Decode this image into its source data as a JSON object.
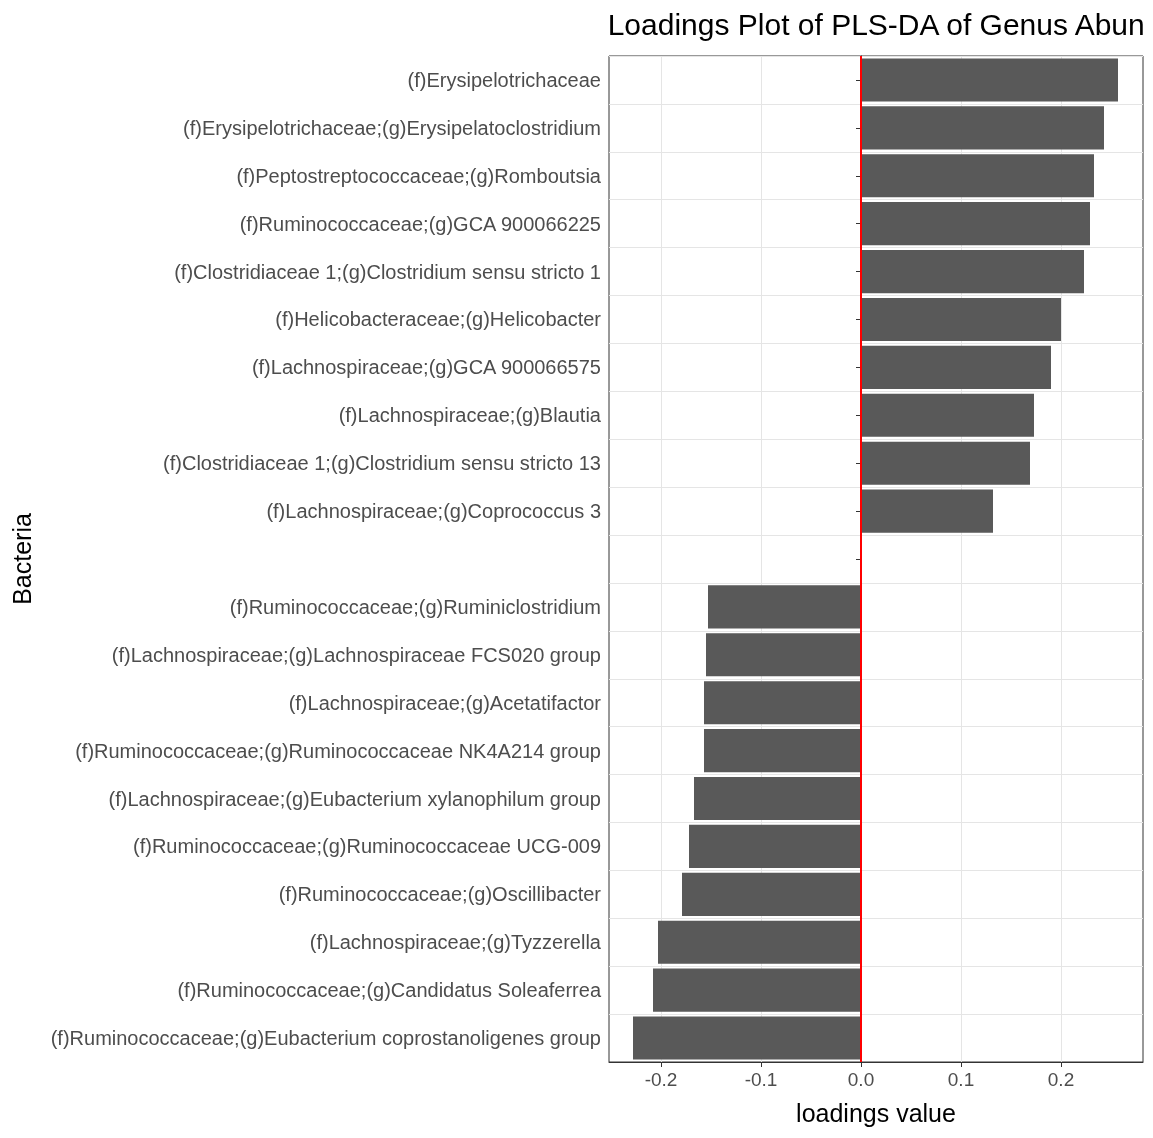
{
  "chart_data": {
    "type": "bar",
    "orientation": "horizontal",
    "title": "Loadings Plot of PLS-DA of Genus Abun",
    "xlabel": "loadings value",
    "ylabel": "Bacteria",
    "categories": [
      "(f)Erysipelotrichaceae",
      "(f)Erysipelotrichaceae;(g)Erysipelatoclostridium",
      "(f)Peptostreptococcaceae;(g)Romboutsia",
      "(f)Ruminococcaceae;(g)GCA 900066225",
      "(f)Clostridiaceae 1;(g)Clostridium sensu stricto 1",
      "(f)Helicobacteraceae;(g)Helicobacter",
      "(f)Lachnospiraceae;(g)GCA 900066575",
      "(f)Lachnospiraceae;(g)Blautia",
      "(f)Clostridiaceae 1;(g)Clostridium sensu stricto 13",
      "(f)Lachnospiraceae;(g)Coprococcus 3",
      null,
      "(f)Ruminococcaceae;(g)Ruminiclostridium",
      "(f)Lachnospiraceae;(g)Lachnospiraceae FCS020 group",
      "(f)Lachnospiraceae;(g)Acetatifactor",
      "(f)Ruminococcaceae;(g)Ruminococcaceae NK4A214 group",
      "(f)Lachnospiraceae;(g)Eubacterium xylanophilum group",
      "(f)Ruminococcaceae;(g)Ruminococcaceae UCG-009",
      "(f)Ruminococcaceae;(g)Oscillibacter",
      "(f)Lachnospiraceae;(g)Tyzzerella",
      "(f)Ruminococcaceae;(g)Candidatus Soleaferrea",
      "(f)Ruminococcaceae;(g)Eubacterium coprostanoligenes group"
    ],
    "values": [
      0.257,
      0.243,
      0.233,
      0.229,
      0.223,
      0.2,
      0.19,
      0.173,
      0.169,
      0.132,
      null,
      -0.153,
      -0.155,
      -0.157,
      -0.157,
      -0.167,
      -0.172,
      -0.179,
      -0.203,
      -0.208,
      -0.228
    ],
    "color": "#595959",
    "xlim": [
      -0.252,
      0.282
    ],
    "xticks": [
      {
        "value": -0.2,
        "label": "-0.2"
      },
      {
        "value": -0.1,
        "label": "-0.1"
      },
      {
        "value": 0,
        "label": "0.0"
      },
      {
        "value": 0.1,
        "label": "0.1"
      },
      {
        "value": 0.2,
        "label": "0.2"
      }
    ],
    "ref_lines": [
      {
        "axis": "x",
        "value": 0,
        "color": "#ff0000"
      }
    ],
    "grid": true
  }
}
